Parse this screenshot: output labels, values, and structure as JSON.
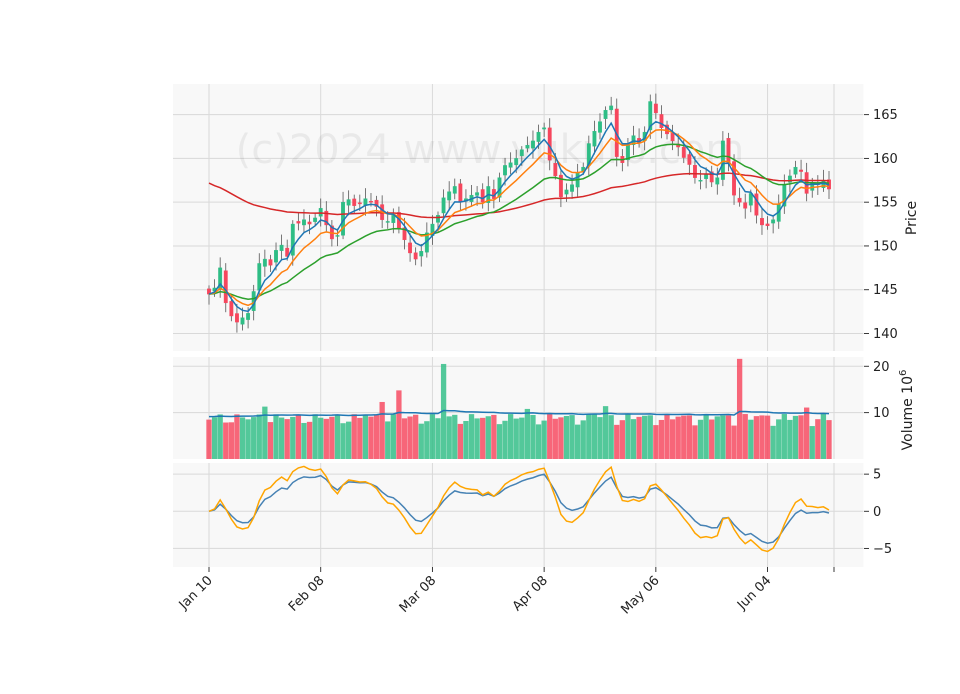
{
  "chart_data": {
    "type": "candlestick",
    "watermark": "(c)2024 www.yukuro.com",
    "x_ticks": [
      "Jan 10",
      "Feb 08",
      "Mar 08",
      "Apr 08",
      "May 06",
      "Jun 04"
    ],
    "price": {
      "ylabel": "Price",
      "ylim": [
        138,
        168.5
      ],
      "yticks": [
        140,
        145,
        150,
        155,
        160,
        165
      ],
      "grid": true
    },
    "volume": {
      "ylabel": "Volume",
      "yunit": "10",
      "yunit_exp": "6",
      "ylim": [
        0,
        22
      ],
      "yticks": [
        10,
        20
      ],
      "grid": true
    },
    "oscillator": {
      "ylim": [
        -7.5,
        6.5
      ],
      "yticks": [
        5,
        0,
        -5
      ],
      "grid": true
    },
    "colors": {
      "up": "#2ebd85",
      "down": "#f6465d",
      "ma_short": "#1f77b4",
      "ma_mid": "#ff7f0e",
      "ma_long": "#2ca02c",
      "ma_200": "#d62728",
      "osc_1": "#4682b4",
      "osc_2": "#ffa500"
    },
    "close": [
      144.5,
      145.2,
      147.5,
      143.5,
      142.0,
      141.3,
      141.8,
      142.3,
      144.8,
      148.0,
      148.5,
      147.8,
      149.5,
      150.1,
      148.8,
      152.5,
      152.6,
      153.0,
      152.5,
      153.2,
      154.3,
      152.4,
      150.8,
      151.2,
      155.0,
      155.3,
      154.6,
      154.8,
      155.4,
      155.0,
      154.5,
      153.0,
      152.8,
      153.5,
      152.0,
      150.7,
      149.2,
      148.5,
      149.4,
      151.5,
      152.5,
      153.5,
      155.5,
      156.2,
      156.8,
      155.0,
      155.4,
      155.8,
      156.1,
      155.0,
      156.8,
      155.4,
      157.8,
      159.2,
      159.5,
      160.0,
      161.0,
      161.5,
      162.0,
      163.0,
      163.5,
      159.8,
      158.0,
      155.6,
      156.4,
      157.0,
      158.3,
      159.0,
      161.7,
      163.1,
      164.2,
      165.5,
      166.0,
      160.2,
      159.5,
      161.7,
      162.6,
      161.8,
      163.0,
      166.5,
      165.2,
      163.5,
      162.8,
      162.0,
      161.3,
      160.1,
      159.3,
      157.8,
      157.5,
      158.2,
      157.3,
      157.8,
      162.0,
      159.5,
      155.8,
      155.0,
      154.3,
      156.0,
      153.5,
      152.4,
      152.3,
      153.0,
      154.8,
      157.0,
      158.0,
      159.0,
      158.5,
      156.0,
      157.2,
      157.0,
      157.5,
      156.5
    ]
  }
}
